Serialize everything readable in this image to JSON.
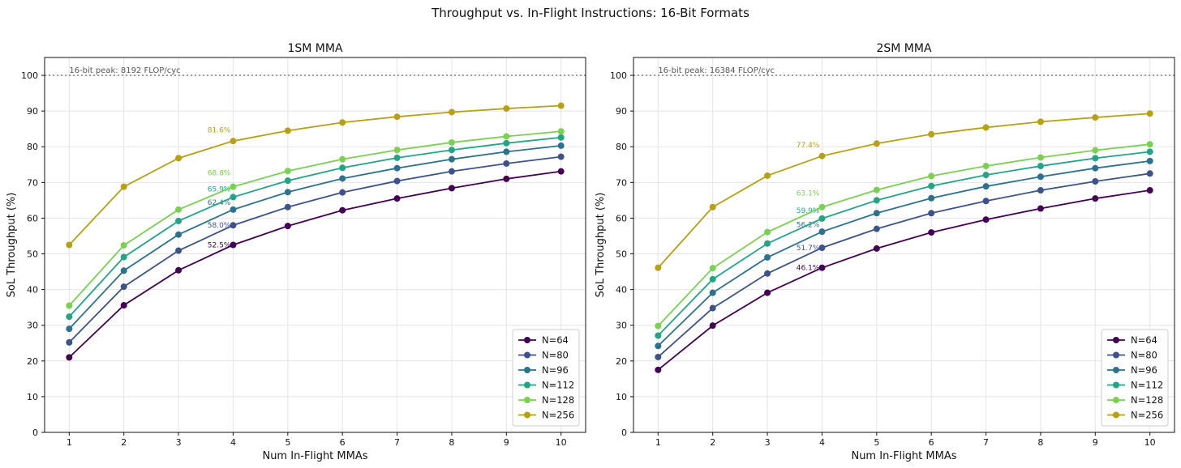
{
  "figure_title": "Throughput vs. In-Flight Instructions: 16-Bit Formats",
  "colors": {
    "N=64": "#440154",
    "N=80": "#3b528b",
    "N=96": "#2c728e",
    "N=112": "#21a585",
    "N=128": "#7ad151",
    "N=256": "#b8a013",
    "peak_line": "#888888",
    "grid": "#e4e4e4"
  },
  "chart_data": [
    {
      "type": "line",
      "title": "1SM MMA",
      "xlabel": "Num In-Flight MMAs",
      "ylabel": "SoL Throughput (%)",
      "x": [
        1,
        2,
        3,
        4,
        5,
        6,
        7,
        8,
        9,
        10
      ],
      "xlim": [
        0.55,
        10.45
      ],
      "ylim": [
        0,
        105
      ],
      "xticks": [
        "1",
        "2",
        "3",
        "4",
        "5",
        "6",
        "7",
        "8",
        "9",
        "10"
      ],
      "yticks": [
        "0",
        "10",
        "20",
        "30",
        "40",
        "50",
        "60",
        "70",
        "80",
        "90",
        "100"
      ],
      "grid": true,
      "legend_position": "lower-right",
      "reference_line": {
        "value": 100,
        "label": "16-bit peak: 8192 FLOP/cyc"
      },
      "series": [
        {
          "name": "N=64",
          "values": [
            21.0,
            35.6,
            45.4,
            52.5,
            57.8,
            62.2,
            65.5,
            68.4,
            71.0,
            73.1
          ],
          "annotation": "52.5%"
        },
        {
          "name": "N=80",
          "values": [
            25.2,
            40.8,
            50.9,
            58.0,
            63.1,
            67.2,
            70.4,
            73.1,
            75.3,
            77.2
          ],
          "annotation": "58.0%"
        },
        {
          "name": "N=96",
          "values": [
            29.0,
            45.3,
            55.4,
            62.4,
            67.3,
            71.1,
            74.0,
            76.5,
            78.6,
            80.3
          ],
          "annotation": "62.4%"
        },
        {
          "name": "N=112",
          "values": [
            32.4,
            49.1,
            59.2,
            65.9,
            70.5,
            74.1,
            76.9,
            79.1,
            81.0,
            82.6
          ],
          "annotation": "65.9%"
        },
        {
          "name": "N=128",
          "values": [
            35.5,
            52.4,
            62.4,
            68.8,
            73.2,
            76.5,
            79.1,
            81.2,
            82.9,
            84.3
          ],
          "annotation": "68.8%"
        },
        {
          "name": "N=256",
          "values": [
            52.5,
            68.8,
            76.8,
            81.6,
            84.5,
            86.8,
            88.4,
            89.7,
            90.7,
            91.5
          ],
          "annotation": "81.6%"
        }
      ]
    },
    {
      "type": "line",
      "title": "2SM MMA",
      "xlabel": "Num In-Flight MMAs",
      "ylabel": "SoL Throughput (%)",
      "x": [
        1,
        2,
        3,
        4,
        5,
        6,
        7,
        8,
        9,
        10
      ],
      "xlim": [
        0.55,
        10.45
      ],
      "ylim": [
        0,
        105
      ],
      "xticks": [
        "1",
        "2",
        "3",
        "4",
        "5",
        "6",
        "7",
        "8",
        "9",
        "10"
      ],
      "yticks": [
        "0",
        "10",
        "20",
        "30",
        "40",
        "50",
        "60",
        "70",
        "80",
        "90",
        "100"
      ],
      "grid": true,
      "legend_position": "lower-right",
      "reference_line": {
        "value": 100,
        "label": "16-bit peak: 16384 FLOP/cyc"
      },
      "series": [
        {
          "name": "N=64",
          "values": [
            17.5,
            29.9,
            39.1,
            46.1,
            51.5,
            56.0,
            59.6,
            62.7,
            65.5,
            67.8
          ],
          "annotation": "46.1%"
        },
        {
          "name": "N=80",
          "values": [
            21.1,
            34.8,
            44.5,
            51.7,
            57.0,
            61.4,
            64.8,
            67.8,
            70.3,
            72.5
          ],
          "annotation": "51.7%"
        },
        {
          "name": "N=96",
          "values": [
            24.2,
            39.1,
            49.0,
            56.2,
            61.4,
            65.6,
            68.9,
            71.6,
            74.0,
            76.0
          ],
          "annotation": "56.2%"
        },
        {
          "name": "N=112",
          "values": [
            27.1,
            42.9,
            52.9,
            59.9,
            65.0,
            69.0,
            72.1,
            74.6,
            76.8,
            78.6
          ],
          "annotation": "59.9%"
        },
        {
          "name": "N=128",
          "values": [
            29.8,
            46.0,
            56.1,
            63.1,
            67.9,
            71.8,
            74.6,
            77.0,
            79.0,
            80.7
          ],
          "annotation": "63.1%"
        },
        {
          "name": "N=256",
          "values": [
            46.1,
            63.1,
            71.9,
            77.4,
            80.9,
            83.5,
            85.4,
            87.0,
            88.2,
            89.3
          ],
          "annotation": "77.4%"
        }
      ]
    }
  ]
}
